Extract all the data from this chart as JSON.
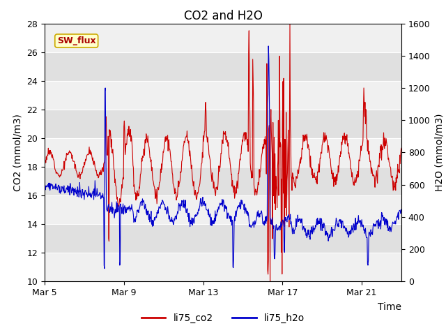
{
  "title": "CO2 and H2O",
  "xlabel": "Time",
  "ylabel_left": "CO2 (mmol/m3)",
  "ylabel_right": "H2O (mmol/m3)",
  "ylim_left": [
    10,
    28
  ],
  "ylim_right": [
    0,
    1600
  ],
  "yticks_left": [
    10,
    12,
    14,
    16,
    18,
    20,
    22,
    24,
    26,
    28
  ],
  "yticks_right": [
    0,
    200,
    400,
    600,
    800,
    1000,
    1200,
    1400,
    1600
  ],
  "color_co2": "#cc0000",
  "color_h2o": "#0000cc",
  "legend_co2": "li75_co2",
  "legend_h2o": "li75_h2o",
  "annotation_text": "SW_flux",
  "annotation_color": "#aa0000",
  "annotation_bg": "#ffffcc",
  "annotation_border": "#ccaa00",
  "background_color": "#ffffff",
  "plot_bg_light": "#f0f0f0",
  "plot_bg_dark": "#e0e0e0",
  "grid_color": "#ffffff",
  "title_fontsize": 12,
  "axis_fontsize": 10,
  "tick_fontsize": 9,
  "legend_fontsize": 10,
  "line_width": 0.8,
  "x_tick_days": [
    5,
    9,
    13,
    17,
    21
  ],
  "x_tick_labels": [
    "Mar 5",
    "Mar 9",
    "Mar 13",
    "Mar 17",
    "Mar 21"
  ]
}
